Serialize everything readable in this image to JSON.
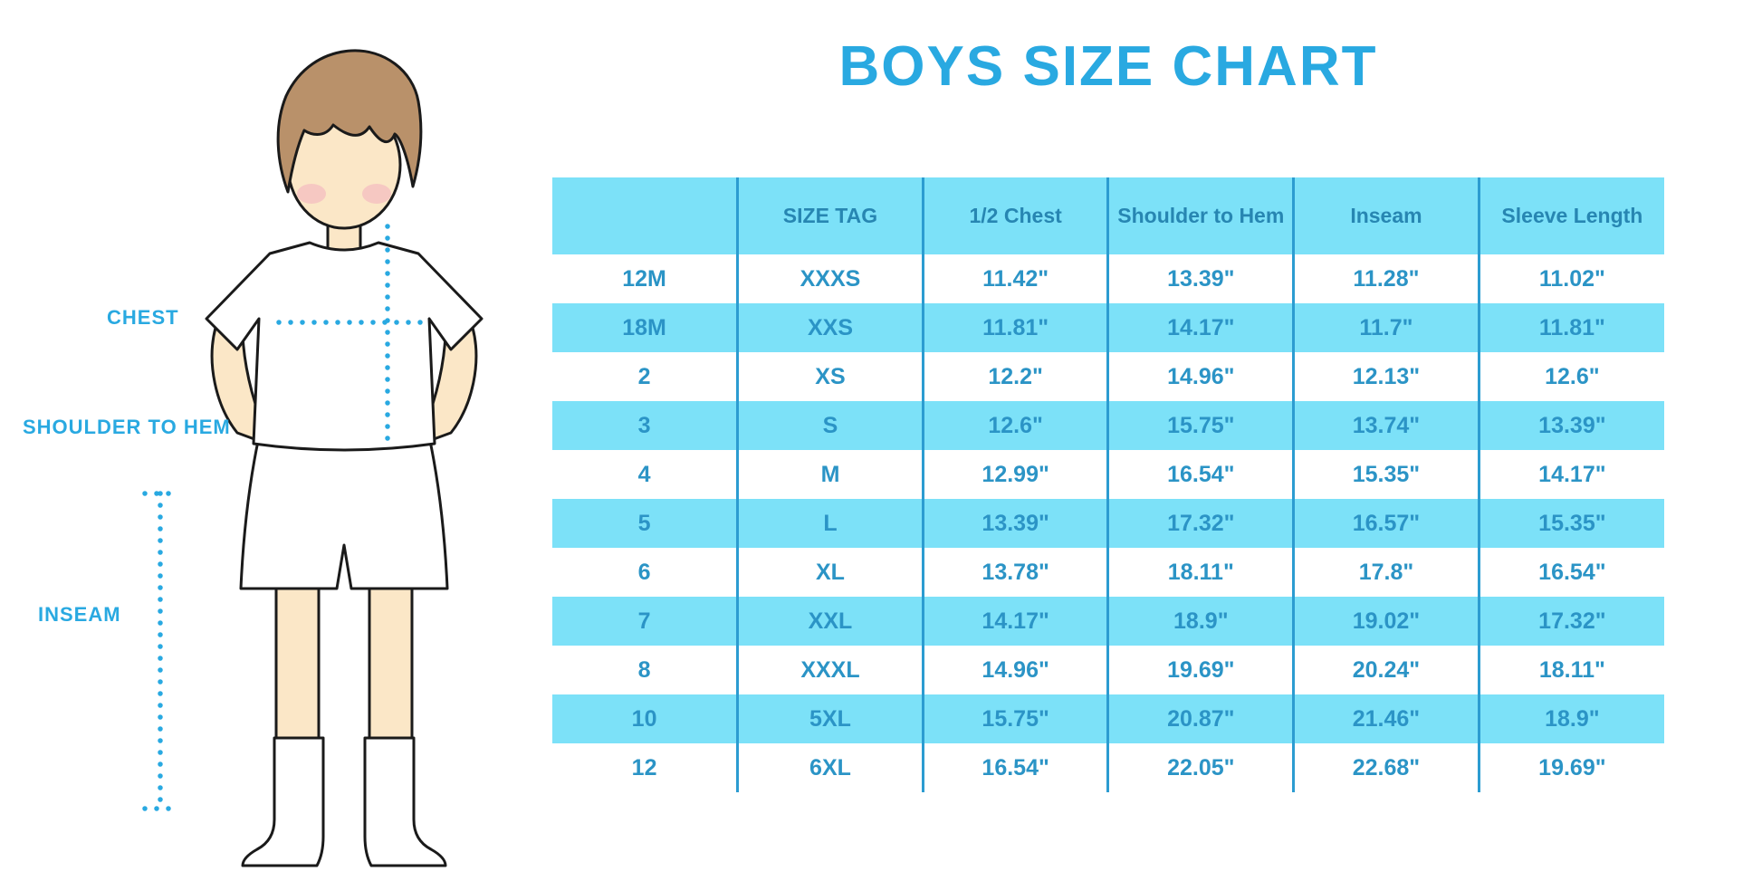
{
  "title": "BOYS SIZE CHART",
  "figure_labels": {
    "chest": "CHEST",
    "shoulder_to_hem": "SHOULDER TO HEM",
    "inseam": "INSEAM"
  },
  "colors": {
    "accent": "#29A9E1",
    "table_fill": "#7CE1F8",
    "header_text": "#2786B2",
    "cell_text": "#2B94C6",
    "divider": "#2C9CD1",
    "outline": "#1a1a1a",
    "skin": "#FBE7C7",
    "hair": "#B9916A",
    "blush": "#F2AEBE"
  },
  "chart_data": {
    "type": "table",
    "title": "BOYS SIZE CHART",
    "columns": [
      "",
      "SIZE TAG",
      "1/2 Chest",
      "Shoulder to Hem",
      "Inseam",
      "Sleeve Length"
    ],
    "rows": [
      [
        "12M",
        "XXXS",
        "11.42\"",
        "13.39\"",
        "11.28\"",
        "11.02\""
      ],
      [
        "18M",
        "XXS",
        "11.81\"",
        "14.17\"",
        "11.7\"",
        "11.81\""
      ],
      [
        "2",
        "XS",
        "12.2\"",
        "14.96\"",
        "12.13\"",
        "12.6\""
      ],
      [
        "3",
        "S",
        "12.6\"",
        "15.75\"",
        "13.74\"",
        "13.39\""
      ],
      [
        "4",
        "M",
        "12.99\"",
        "16.54\"",
        "15.35\"",
        "14.17\""
      ],
      [
        "5",
        "L",
        "13.39\"",
        "17.32\"",
        "16.57\"",
        "15.35\""
      ],
      [
        "6",
        "XL",
        "13.78\"",
        "18.11\"",
        "17.8\"",
        "16.54\""
      ],
      [
        "7",
        "XXL",
        "14.17\"",
        "18.9\"",
        "19.02\"",
        "17.32\""
      ],
      [
        "8",
        "XXXL",
        "14.96\"",
        "19.69\"",
        "20.24\"",
        "18.11\""
      ],
      [
        "10",
        "5XL",
        "15.75\"",
        "20.87\"",
        "21.46\"",
        "18.9\""
      ],
      [
        "12",
        "6XL",
        "16.54\"",
        "22.05\"",
        "22.68\"",
        "19.69\""
      ]
    ],
    "row_striping": "white and light blue alternating, first data row white",
    "legend_position": "none",
    "grid": "vertical column dividers only"
  }
}
